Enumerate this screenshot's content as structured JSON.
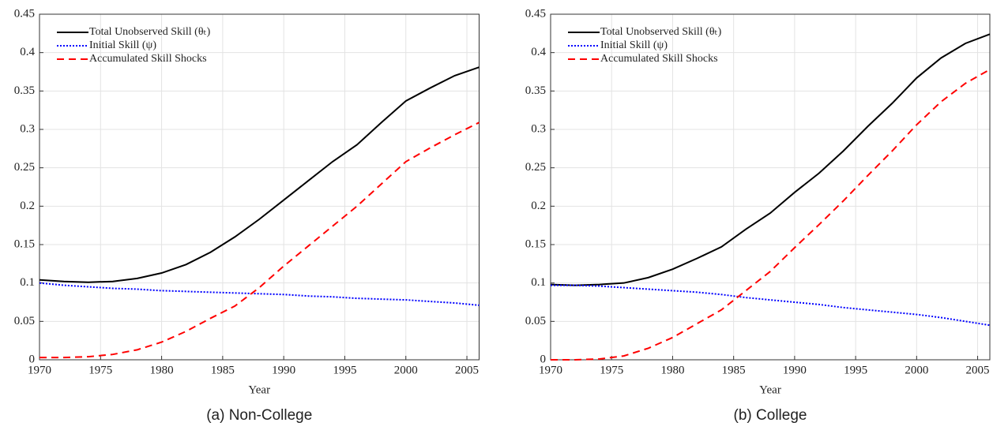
{
  "chart_data": [
    {
      "type": "line",
      "xlabel": "Year",
      "caption": "(a) Non-College",
      "x": [
        1970,
        1972,
        1974,
        1976,
        1978,
        1980,
        1982,
        1984,
        1986,
        1988,
        1990,
        1992,
        1994,
        1996,
        1998,
        2000,
        2002,
        2004,
        2006
      ],
      "series": [
        {
          "name": "Total Unobserved Skill (θₜ)",
          "color": "#000000",
          "dash": "solid",
          "values": [
            0.104,
            0.102,
            0.101,
            0.102,
            0.106,
            0.113,
            0.124,
            0.14,
            0.16,
            0.183,
            0.208,
            0.233,
            0.258,
            0.28,
            0.309,
            0.337,
            0.354,
            0.37,
            0.381
          ]
        },
        {
          "name": "Initial Skill (ψ)",
          "color": "#0000ff",
          "dash": "dotted",
          "values": [
            0.1,
            0.097,
            0.095,
            0.093,
            0.092,
            0.09,
            0.089,
            0.088,
            0.087,
            0.086,
            0.085,
            0.083,
            0.082,
            0.08,
            0.079,
            0.078,
            0.076,
            0.074,
            0.071
          ]
        },
        {
          "name": "Accumulated Skill Shocks",
          "color": "#ff0000",
          "dash": "dashed",
          "values": [
            0.003,
            0.003,
            0.004,
            0.007,
            0.013,
            0.023,
            0.037,
            0.054,
            0.07,
            0.094,
            0.122,
            0.148,
            0.174,
            0.2,
            0.229,
            0.258,
            0.276,
            0.293,
            0.309
          ]
        }
      ],
      "xlim": [
        1970,
        2006
      ],
      "xticks": [
        1970,
        1975,
        1980,
        1985,
        1990,
        1995,
        2000,
        2005
      ],
      "ylim": [
        0,
        0.45
      ],
      "yticks": [
        0,
        0.05,
        0.1,
        0.15,
        0.2,
        0.25,
        0.3,
        0.35,
        0.4,
        0.45
      ],
      "grid": true,
      "legend": "upper-left"
    },
    {
      "type": "line",
      "xlabel": "Year",
      "caption": "(b) College",
      "x": [
        1970,
        1972,
        1974,
        1976,
        1978,
        1980,
        1982,
        1984,
        1986,
        1988,
        1990,
        1992,
        1994,
        1996,
        1998,
        2000,
        2002,
        2004,
        2006
      ],
      "series": [
        {
          "name": "Total Unobserved Skill (θₜ)",
          "color": "#000000",
          "dash": "solid",
          "values": [
            0.098,
            0.097,
            0.098,
            0.1,
            0.107,
            0.118,
            0.132,
            0.147,
            0.17,
            0.191,
            0.218,
            0.243,
            0.272,
            0.304,
            0.334,
            0.367,
            0.393,
            0.412,
            0.424
          ]
        },
        {
          "name": "Initial Skill (ψ)",
          "color": "#0000ff",
          "dash": "dotted",
          "values": [
            0.097,
            0.097,
            0.096,
            0.094,
            0.092,
            0.09,
            0.088,
            0.085,
            0.081,
            0.078,
            0.075,
            0.072,
            0.068,
            0.065,
            0.062,
            0.059,
            0.055,
            0.05,
            0.045
          ]
        },
        {
          "name": "Accumulated Skill Shocks",
          "color": "#ff0000",
          "dash": "dashed",
          "values": [
            0.0,
            0.0,
            0.001,
            0.005,
            0.015,
            0.029,
            0.047,
            0.065,
            0.09,
            0.115,
            0.146,
            0.176,
            0.207,
            0.24,
            0.272,
            0.306,
            0.336,
            0.36,
            0.378
          ]
        }
      ],
      "xlim": [
        1970,
        2006
      ],
      "xticks": [
        1970,
        1975,
        1980,
        1985,
        1990,
        1995,
        2000,
        2005
      ],
      "ylim": [
        0,
        0.45
      ],
      "yticks": [
        0,
        0.05,
        0.1,
        0.15,
        0.2,
        0.25,
        0.3,
        0.35,
        0.4,
        0.45
      ],
      "grid": true,
      "legend": "upper-left"
    }
  ]
}
